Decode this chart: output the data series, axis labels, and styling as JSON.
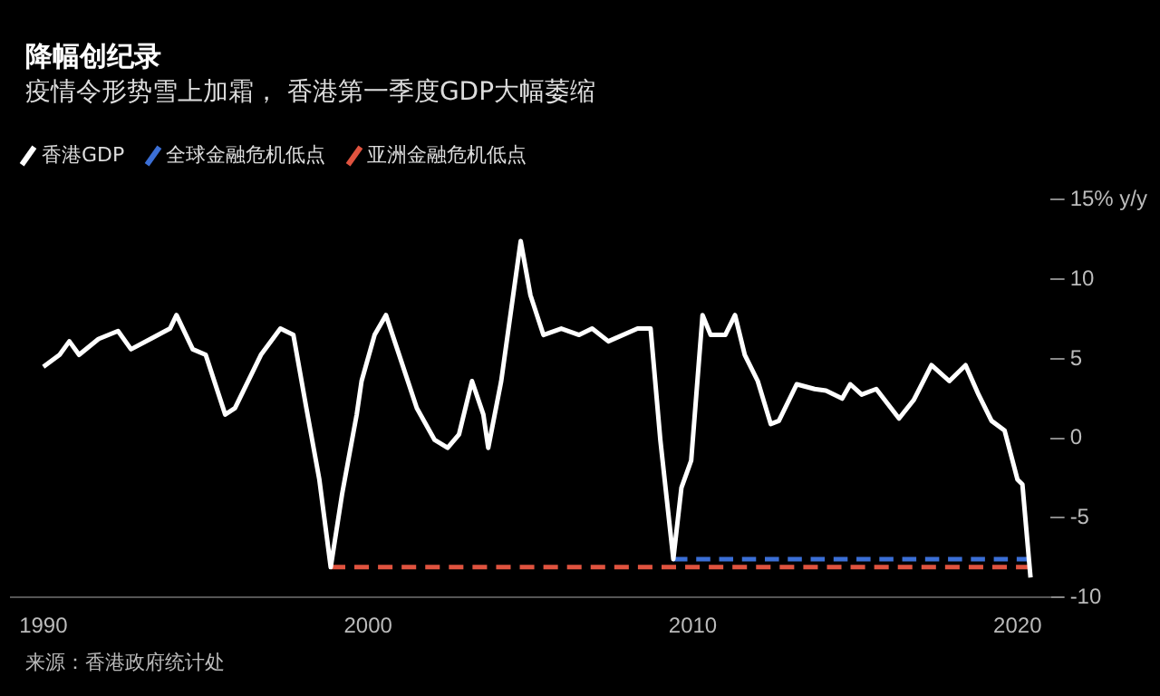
{
  "chart_data": {
    "type": "line",
    "title": "降幅创纪录",
    "subtitle": "疫情令形势雪上加霜， 香港第一季度GDP大幅萎缩",
    "annotations": [
      "来源：香港政府统计处"
    ],
    "legend": "top left",
    "series": [
      {
        "name": "香港GDP",
        "color": "#ffffff",
        "x": [
          1990.0,
          1990.5,
          1990.8,
          1991.1,
          1991.7,
          1992.3,
          1992.7,
          1993.3,
          1993.9,
          1994.1,
          1994.6,
          1995.0,
          1995.6,
          1995.9,
          1996.7,
          1997.3,
          1997.7,
          1998.1,
          1998.5,
          1998.85,
          1999.2,
          1999.65,
          1999.8,
          2000.2,
          2000.55,
          2000.9,
          2001.5,
          2002.05,
          2002.45,
          2002.8,
          2003.2,
          2003.55,
          2003.7,
          2004.1,
          2004.7,
          2005.0,
          2005.4,
          2005.95,
          2006.5,
          2006.9,
          2007.4,
          2008.3,
          2008.7,
          2009.0,
          2009.4,
          2009.65,
          2009.95,
          2010.3,
          2010.55,
          2011.0,
          2011.3,
          2011.6,
          2012.0,
          2012.4,
          2012.65,
          2013.2,
          2013.75,
          2014.1,
          2014.6,
          2014.85,
          2015.2,
          2015.65,
          2016.35,
          2016.8,
          2017.35,
          2017.9,
          2018.4,
          2018.8,
          2019.2,
          2019.6,
          2020.0,
          2020.15,
          2020.4
        ],
        "values": [
          4.5,
          5.25,
          6.1,
          5.25,
          6.25,
          6.75,
          5.6,
          6.25,
          6.9,
          7.75,
          5.6,
          5.25,
          1.5,
          1.9,
          5.25,
          6.9,
          6.5,
          1.9,
          -2.6,
          -8.1,
          -3.5,
          1.5,
          3.6,
          6.5,
          7.75,
          5.6,
          1.9,
          -0.1,
          -0.6,
          0.25,
          3.6,
          1.5,
          -0.6,
          3.6,
          12.4,
          9,
          6.5,
          6.9,
          6.5,
          6.9,
          6.1,
          6.9,
          6.9,
          -0.1,
          -7.6,
          -3.1,
          -1.4,
          7.75,
          6.5,
          6.5,
          7.75,
          5.25,
          3.6,
          0.9,
          1.1,
          3.4,
          3.1,
          3,
          2.5,
          3.4,
          2.75,
          3.1,
          1.25,
          2.4,
          4.6,
          3.6,
          4.6,
          2.75,
          1.1,
          0.5,
          -2.6,
          -2.9,
          -8.75
        ]
      },
      {
        "name": "全球金融危机低点",
        "color": "#3b6fd6",
        "line_style": "dashed",
        "x": [
          2009.4,
          2020.4
        ],
        "values": [
          -7.6,
          -7.6
        ]
      },
      {
        "name": "亚洲金融危机低点",
        "color": "#e0533f",
        "line_style": "dashed",
        "x": [
          1998.85,
          2020.4
        ],
        "values": [
          -8.1,
          -8.1
        ]
      }
    ],
    "xlim": [
      1989,
      2021
    ],
    "xticks": [
      1990,
      2000,
      2010,
      2020
    ],
    "ylim": [
      -10,
      15
    ],
    "yticks": [
      {
        "value": 15,
        "label": "15% y/y"
      },
      10,
      5,
      0,
      -5,
      -10
    ]
  }
}
